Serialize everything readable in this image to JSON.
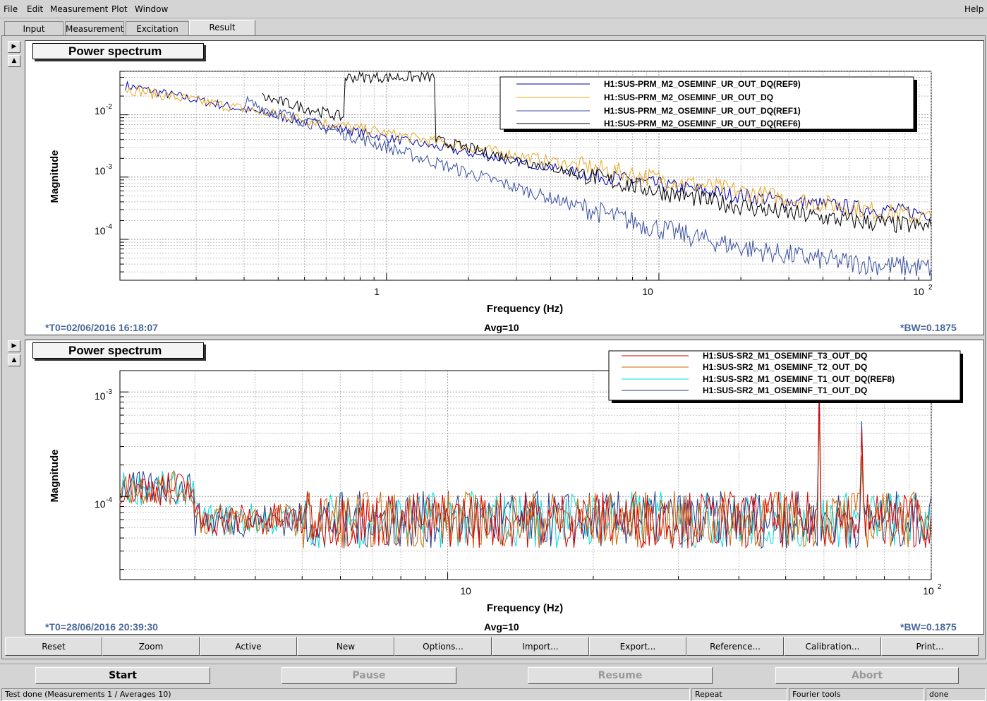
{
  "menu": {
    "file": "File",
    "edit": "Edit",
    "measurement": "Measurement",
    "plot": "Plot",
    "window": "Window",
    "help": "Help"
  },
  "tabs": [
    "Input",
    "Measurement",
    "Excitation",
    "Result"
  ],
  "plot1": {
    "title": "Power spectrum",
    "ylabel": "Magnitude",
    "xlabel": "Frequency (Hz)",
    "t0": "*T0=02/06/2016 16:18:07",
    "avg": "Avg=10",
    "bw": "*BW=0.1875",
    "xticks": [
      "1",
      "10",
      "10"
    ],
    "xtick_sup": "2",
    "yticks": [
      {
        "base": "10",
        "exp": "-2"
      },
      {
        "base": "10",
        "exp": "-3"
      },
      {
        "base": "10",
        "exp": "-4"
      }
    ],
    "legend": [
      {
        "name": "H1:SUS-PRM_M2_OSEMINF_UR_OUT_DQ(REF9)",
        "color": "#0000aa"
      },
      {
        "name": "H1:SUS-PRM_M2_OSEMINF_UR_OUT_DQ",
        "color": "#e8a820"
      },
      {
        "name": "H1:SUS-PRM_M2_OSEMINF_UR_OUT_DQ(REF1)",
        "color": "#3a50a0"
      },
      {
        "name": "H1:SUS-PRM_M2_OSEMINF_UR_OUT_DQ(REF6)",
        "color": "#000000"
      }
    ]
  },
  "plot2": {
    "title": "Power spectrum",
    "ylabel": "Magnitude",
    "xlabel": "Frequency (Hz)",
    "t0": "*T0=28/06/2016 20:39:30",
    "avg": "Avg=10",
    "bw": "*BW=0.1875",
    "xticks": [
      "10",
      "10"
    ],
    "xtick_sup": "2",
    "yticks": [
      {
        "base": "10",
        "exp": "-3"
      },
      {
        "base": "10",
        "exp": "-4"
      }
    ],
    "legend": [
      {
        "name": "H1:SUS-SR2_M1_OSEMINF_T3_OUT_DQ",
        "color": "#dd0000"
      },
      {
        "name": "H1:SUS-SR2_M1_OSEMINF_T2_OUT_DQ",
        "color": "#cc6600"
      },
      {
        "name": "H1:SUS-SR2_M1_OSEMINF_T1_OUT_DQ(REF8)",
        "color": "#00dddd"
      },
      {
        "name": "H1:SUS-SR2_M1_OSEMINF_T1_OUT_DQ",
        "color": "#2a3a8a"
      }
    ]
  },
  "buttons": [
    "Reset",
    "Zoom",
    "Active",
    "New",
    "Options...",
    "Import...",
    "Export...",
    "Reference...",
    "Calibration...",
    "Print..."
  ],
  "controls": {
    "start": "Start",
    "pause": "Pause",
    "resume": "Resume",
    "abort": "Abort"
  },
  "status": {
    "main": "Test done (Measurements 1 / Averages 10)",
    "repeat": "Repeat",
    "fourier": "Fourier tools",
    "done": "done"
  }
}
